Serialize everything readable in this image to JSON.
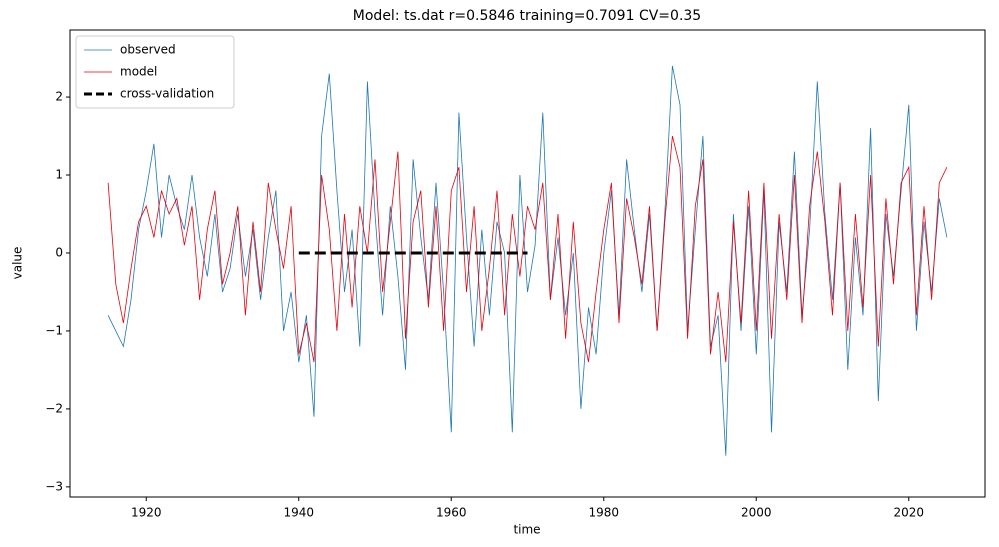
{
  "chart_data": {
    "type": "line",
    "title": "Model: ts.dat  r=0.5846  training=0.7091  CV=0.35",
    "x_label": "time",
    "y_label": "value",
    "legend": "upper left",
    "xlim": [
      1910,
      2030
    ],
    "ylim": [
      -3.13,
      2.86
    ],
    "xticks": [
      1920,
      1940,
      1960,
      1980,
      2000,
      2020
    ],
    "yticks": [
      {
        "value": -3,
        "label": "−3"
      },
      {
        "value": -2,
        "label": "−2"
      },
      {
        "value": -1,
        "label": "−1"
      },
      0,
      1,
      2
    ],
    "series": [
      {
        "name": "observed",
        "color": "#1f77b4",
        "style": "solid",
        "linewidth": 0.8,
        "x": [
          1915,
          1916,
          1917,
          1918,
          1919,
          1920,
          1921,
          1922,
          1923,
          1924,
          1925,
          1926,
          1927,
          1928,
          1929,
          1930,
          1931,
          1932,
          1933,
          1934,
          1935,
          1936,
          1937,
          1938,
          1939,
          1940,
          1941,
          1942,
          1943,
          1944,
          1945,
          1946,
          1947,
          1948,
          1949,
          1950,
          1951,
          1952,
          1953,
          1954,
          1955,
          1956,
          1957,
          1958,
          1959,
          1960,
          1961,
          1962,
          1963,
          1964,
          1965,
          1966,
          1967,
          1968,
          1969,
          1970,
          1971,
          1972,
          1973,
          1974,
          1975,
          1976,
          1977,
          1978,
          1979,
          1980,
          1981,
          1982,
          1983,
          1984,
          1985,
          1986,
          1987,
          1988,
          1989,
          1990,
          1991,
          1992,
          1993,
          1994,
          1995,
          1996,
          1997,
          1998,
          1999,
          2000,
          2001,
          2002,
          2003,
          2004,
          2005,
          2006,
          2007,
          2008,
          2009,
          2010,
          2011,
          2012,
          2013,
          2014,
          2015,
          2016,
          2017,
          2018,
          2019,
          2020,
          2021,
          2022,
          2023,
          2024,
          2025
        ],
        "values": [
          -0.8,
          -1.0,
          -1.2,
          -0.6,
          0.3,
          0.8,
          1.4,
          0.2,
          1.0,
          0.6,
          0.3,
          1.0,
          0.2,
          -0.3,
          0.5,
          -0.5,
          -0.2,
          0.5,
          -0.3,
          0.3,
          -0.6,
          0.2,
          0.8,
          -1.0,
          -0.5,
          -1.4,
          -0.8,
          -2.1,
          1.5,
          2.3,
          0.8,
          -0.5,
          0.3,
          -1.2,
          2.2,
          0.5,
          -0.8,
          0.6,
          -0.3,
          -1.5,
          1.2,
          0.2,
          -0.6,
          0.9,
          -0.5,
          -2.3,
          1.8,
          0.2,
          -1.2,
          0.3,
          -0.8,
          0.4,
          0.0,
          -2.3,
          1.0,
          -0.5,
          0.1,
          1.8,
          -0.6,
          0.2,
          -0.8,
          0.0,
          -2.0,
          -0.7,
          -1.3,
          0.0,
          0.8,
          -0.8,
          1.2,
          0.3,
          -0.5,
          0.5,
          -1.0,
          0.5,
          2.4,
          1.9,
          -1.0,
          0.3,
          1.5,
          -1.2,
          -0.8,
          -2.6,
          0.5,
          -1.0,
          0.6,
          -1.3,
          0.8,
          -2.3,
          0.4,
          -0.5,
          1.3,
          -0.8,
          0.3,
          2.2,
          0.5,
          -0.6,
          0.9,
          -1.5,
          0.2,
          -0.8,
          1.6,
          -1.9,
          0.5,
          -0.3,
          0.8,
          1.9,
          -1.0,
          0.4,
          -0.5,
          0.7,
          0.2
        ]
      },
      {
        "name": "model",
        "color": "#e8000b",
        "style": "solid",
        "linewidth": 0.8,
        "x": [
          1915,
          1916,
          1917,
          1918,
          1919,
          1920,
          1921,
          1922,
          1923,
          1924,
          1925,
          1926,
          1927,
          1928,
          1929,
          1930,
          1931,
          1932,
          1933,
          1934,
          1935,
          1936,
          1937,
          1938,
          1939,
          1940,
          1941,
          1942,
          1943,
          1944,
          1945,
          1946,
          1947,
          1948,
          1949,
          1950,
          1951,
          1952,
          1953,
          1954,
          1955,
          1956,
          1957,
          1958,
          1959,
          1960,
          1961,
          1962,
          1963,
          1964,
          1965,
          1966,
          1967,
          1968,
          1969,
          1970,
          1971,
          1972,
          1973,
          1974,
          1975,
          1976,
          1977,
          1978,
          1979,
          1980,
          1981,
          1982,
          1983,
          1984,
          1985,
          1986,
          1987,
          1988,
          1989,
          1990,
          1991,
          1992,
          1993,
          1994,
          1995,
          1996,
          1997,
          1998,
          1999,
          2000,
          2001,
          2002,
          2003,
          2004,
          2005,
          2006,
          2007,
          2008,
          2009,
          2010,
          2011,
          2012,
          2013,
          2014,
          2015,
          2016,
          2017,
          2018,
          2019,
          2020,
          2021,
          2022,
          2023,
          2024,
          2025
        ],
        "values": [
          0.9,
          -0.4,
          -0.9,
          -0.2,
          0.4,
          0.6,
          0.2,
          0.8,
          0.5,
          0.7,
          0.1,
          0.6,
          -0.6,
          0.3,
          0.8,
          -0.4,
          0.0,
          0.6,
          -0.8,
          0.4,
          -0.5,
          0.9,
          0.3,
          -0.2,
          0.6,
          -1.3,
          -0.9,
          -1.4,
          1.0,
          0.3,
          -1.0,
          0.5,
          -0.7,
          0.6,
          0.0,
          1.2,
          -0.5,
          0.4,
          1.3,
          -1.1,
          0.4,
          0.8,
          -0.7,
          0.6,
          -1.0,
          0.8,
          1.1,
          -0.5,
          0.6,
          -1.0,
          -0.2,
          0.8,
          -0.8,
          0.5,
          -0.3,
          0.6,
          0.3,
          0.9,
          -0.6,
          0.5,
          -1.1,
          0.4,
          -0.9,
          -1.4,
          -0.5,
          0.3,
          0.9,
          -0.9,
          0.7,
          0.2,
          -0.4,
          0.6,
          -1.0,
          0.4,
          1.5,
          1.1,
          -1.1,
          0.6,
          1.2,
          -1.3,
          -0.5,
          -1.4,
          0.4,
          -0.9,
          0.8,
          -1.0,
          0.9,
          -1.1,
          0.5,
          -0.6,
          1.0,
          -0.9,
          0.6,
          1.3,
          0.4,
          -0.8,
          0.9,
          -1.0,
          0.5,
          -0.7,
          1.0,
          -1.2,
          0.7,
          -0.4,
          0.9,
          1.1,
          -0.8,
          0.6,
          -0.6,
          0.9,
          1.1
        ]
      },
      {
        "name": "cross-validation",
        "color": "#000000",
        "style": "dashed",
        "linewidth": 3,
        "x": [
          1940,
          1970
        ],
        "values": [
          0,
          0
        ]
      }
    ]
  }
}
